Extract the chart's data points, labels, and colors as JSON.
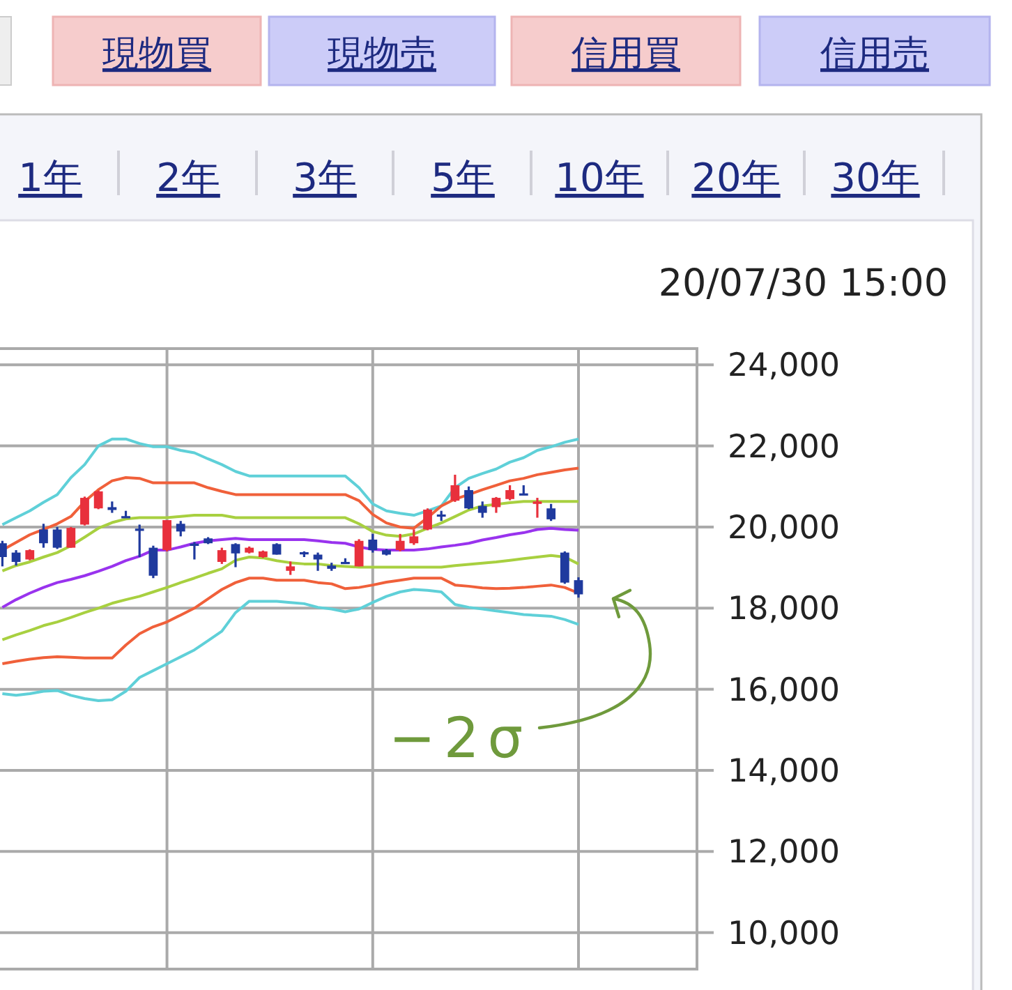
{
  "chart_data": {
    "type": "candlestick",
    "categories": [
      null,
      null,
      null,
      null,
      null,
      null,
      null,
      null,
      null,
      null,
      null,
      null,
      null,
      null,
      null,
      null,
      null,
      null,
      null,
      null,
      null,
      null,
      null,
      null,
      null,
      null,
      null,
      null,
      null,
      null,
      null,
      null,
      null,
      null,
      null,
      null,
      null,
      null,
      null,
      null,
      null,
      null,
      null
    ],
    "ohlc": [
      [
        19600,
        19660,
        19030,
        19260
      ],
      [
        19370,
        19430,
        19050,
        19140
      ],
      [
        19200,
        19450,
        19180,
        19430
      ],
      [
        19940,
        20080,
        19490,
        19600
      ],
      [
        19940,
        20000,
        19460,
        19490
      ],
      [
        19490,
        20000,
        19490,
        19980
      ],
      [
        20060,
        20750,
        20040,
        20720
      ],
      [
        20460,
        20900,
        20440,
        20880
      ],
      [
        20490,
        20630,
        20350,
        20420
      ],
      [
        20270,
        20400,
        20230,
        20250
      ],
      [
        19960,
        20060,
        19260,
        19920
      ],
      [
        19490,
        19540,
        18740,
        18800
      ],
      [
        19430,
        20170,
        19400,
        20170
      ],
      [
        20080,
        20150,
        19770,
        19890
      ],
      [
        19590,
        19630,
        19200,
        19560
      ],
      [
        19720,
        19750,
        19580,
        19600
      ],
      [
        19140,
        19490,
        19090,
        19430
      ],
      [
        19580,
        19600,
        19010,
        19350
      ],
      [
        19370,
        19520,
        19350,
        19490
      ],
      [
        19260,
        19420,
        19240,
        19400
      ],
      [
        19580,
        19600,
        19320,
        19320
      ],
      [
        18920,
        19150,
        18820,
        19030
      ],
      [
        19380,
        19400,
        19260,
        19360
      ],
      [
        19320,
        19370,
        18920,
        19200
      ],
      [
        19050,
        19120,
        18920,
        18970
      ],
      [
        19140,
        19230,
        19100,
        19100
      ],
      [
        19030,
        19700,
        19030,
        19660
      ],
      [
        19690,
        19830,
        19370,
        19430
      ],
      [
        19430,
        19460,
        19300,
        19320
      ],
      [
        19430,
        19830,
        19400,
        19660
      ],
      [
        19600,
        19940,
        19560,
        19770
      ],
      [
        19940,
        20460,
        19920,
        20430
      ],
      [
        20310,
        20400,
        20150,
        20270
      ],
      [
        20650,
        21290,
        20620,
        21030
      ],
      [
        20910,
        21000,
        20440,
        20460
      ],
      [
        20520,
        20630,
        20230,
        20350
      ],
      [
        20490,
        20740,
        20350,
        20720
      ],
      [
        20690,
        21030,
        20660,
        20910
      ],
      [
        20830,
        21030,
        20800,
        20800
      ],
      [
        20570,
        20720,
        20230,
        20630
      ],
      [
        20460,
        20570,
        20150,
        20190
      ],
      [
        19370,
        19400,
        18600,
        18630
      ],
      [
        18690,
        18760,
        18260,
        18340
      ]
    ],
    "colors": [
      "#1f3a9e",
      "#1f3a9e",
      "#e8303c",
      "#1f3a9e",
      "#1f3a9e",
      "#e8303c",
      "#e8303c",
      "#e8303c",
      "#1f3a9e",
      "#1f3a9e",
      "#1f3a9e",
      "#1f3a9e",
      "#e8303c",
      "#1f3a9e",
      "#1f3a9e",
      "#1f3a9e",
      "#e8303c",
      "#1f3a9e",
      "#e8303c",
      "#e8303c",
      "#1f3a9e",
      "#e8303c",
      "#1f3a9e",
      "#1f3a9e",
      "#1f3a9e",
      "#1f3a9e",
      "#e8303c",
      "#1f3a9e",
      "#1f3a9e",
      "#e8303c",
      "#e8303c",
      "#e8303c",
      "#1f3a9e",
      "#e8303c",
      "#1f3a9e",
      "#1f3a9e",
      "#e8303c",
      "#e8303c",
      "#1f3a9e",
      "#e8303c",
      "#1f3a9e",
      "#1f3a9e",
      "#1f3a9e"
    ],
    "series": [
      {
        "type": "line",
        "color": "#5fd0d8",
        "values": [
          20060,
          20230,
          20400,
          20610,
          20800,
          21220,
          21540,
          22000,
          22170,
          22170,
          22060,
          21980,
          21980,
          21890,
          21830,
          21680,
          21540,
          21370,
          21260,
          21260,
          21260,
          21260,
          21260,
          21260,
          21260,
          21260,
          20970,
          20570,
          20400,
          20340,
          20290,
          20400,
          20520,
          20970,
          21200,
          21320,
          21430,
          21600,
          21710,
          21890,
          21980,
          22090,
          22170
        ]
      },
      {
        "type": "line",
        "color": "#f0603a",
        "values": [
          19430,
          19620,
          19810,
          19940,
          20080,
          20260,
          20630,
          20920,
          21140,
          21220,
          21200,
          21090,
          21090,
          21090,
          21090,
          20970,
          20880,
          20800,
          20800,
          20800,
          20800,
          20800,
          20800,
          20800,
          20800,
          20800,
          20650,
          20310,
          20100,
          20000,
          19970,
          20230,
          20520,
          20690,
          20800,
          20920,
          21030,
          21140,
          21200,
          21290,
          21350,
          21410,
          21450
        ]
      },
      {
        "type": "line",
        "color": "#a8d040",
        "values": [
          18920,
          19050,
          19140,
          19260,
          19370,
          19540,
          19750,
          19970,
          20110,
          20200,
          20230,
          20230,
          20230,
          20260,
          20290,
          20290,
          20290,
          20230,
          20230,
          20230,
          20230,
          20230,
          20230,
          20230,
          20230,
          20230,
          20080,
          19890,
          19800,
          19770,
          19830,
          19970,
          20100,
          20260,
          20420,
          20520,
          20560,
          20600,
          20630,
          20630,
          20630,
          20630,
          20630
        ]
      },
      {
        "type": "line",
        "color": "#9933ee",
        "values": [
          18020,
          18210,
          18370,
          18510,
          18630,
          18710,
          18800,
          18910,
          19030,
          19170,
          19280,
          19430,
          19430,
          19510,
          19600,
          19660,
          19690,
          19720,
          19690,
          19690,
          19690,
          19690,
          19690,
          19660,
          19620,
          19600,
          19510,
          19450,
          19430,
          19430,
          19430,
          19460,
          19510,
          19550,
          19600,
          19680,
          19740,
          19810,
          19860,
          19940,
          19970,
          19940,
          19920
        ]
      },
      {
        "type": "line",
        "color": "#a8d040",
        "values": [
          17220,
          17340,
          17450,
          17570,
          17660,
          17770,
          17890,
          18000,
          18120,
          18210,
          18290,
          18400,
          18510,
          18630,
          18740,
          18860,
          18970,
          19180,
          19260,
          19240,
          19170,
          19120,
          19090,
          19090,
          19050,
          19030,
          19010,
          19010,
          19010,
          19010,
          19010,
          19010,
          19010,
          19050,
          19080,
          19110,
          19140,
          19180,
          19220,
          19260,
          19300,
          19260,
          19090
        ]
      },
      {
        "type": "line",
        "color": "#f0603a",
        "values": [
          16630,
          16690,
          16740,
          16780,
          16800,
          16790,
          16770,
          16770,
          16770,
          17090,
          17370,
          17540,
          17660,
          17830,
          18000,
          18230,
          18460,
          18630,
          18740,
          18740,
          18690,
          18690,
          18690,
          18630,
          18600,
          18480,
          18510,
          18570,
          18640,
          18690,
          18740,
          18740,
          18740,
          18570,
          18540,
          18500,
          18480,
          18490,
          18510,
          18540,
          18570,
          18510,
          18370
        ]
      },
      {
        "type": "line",
        "color": "#5fd0d8",
        "values": [
          15890,
          15850,
          15890,
          15950,
          15970,
          15850,
          15770,
          15720,
          15740,
          15950,
          16290,
          16460,
          16630,
          16800,
          16970,
          17200,
          17430,
          17890,
          18170,
          18170,
          18170,
          18140,
          18110,
          18020,
          17980,
          17910,
          17980,
          18140,
          18290,
          18400,
          18460,
          18440,
          18400,
          18090,
          18020,
          17980,
          17930,
          17890,
          17840,
          17820,
          17800,
          17720,
          17600
        ]
      }
    ],
    "ylim": [
      9100,
      24400
    ],
    "yticks": [
      {
        "value": 10000,
        "label": "10,000"
      },
      {
        "value": 12000,
        "label": "12,000"
      },
      {
        "value": 14000,
        "label": "14,000"
      },
      {
        "value": 16000,
        "label": "16,000"
      },
      {
        "value": 18000,
        "label": "18,000"
      },
      {
        "value": 20000,
        "label": "20,000"
      },
      {
        "value": 22000,
        "label": "22,000"
      },
      {
        "value": 24000,
        "label": "24,000"
      }
    ],
    "grid": true,
    "tick_labels": "y",
    "annotations": [
      "20/07/30 15:00",
      "現物買",
      "現物売",
      "信用買",
      "信用売",
      "1年",
      "2年",
      "3年",
      "5年",
      "10年",
      "20年",
      "30年",
      {
        "text": "−2σ",
        "y": 18370
      }
    ]
  }
}
